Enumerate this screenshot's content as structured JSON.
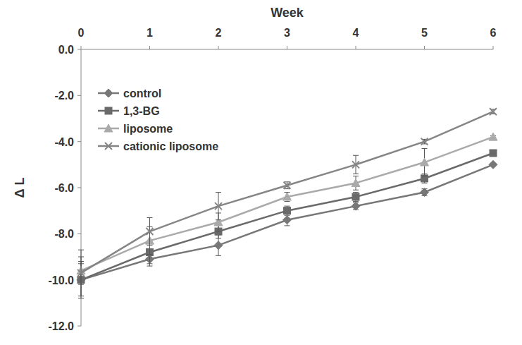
{
  "chart_data": {
    "type": "line",
    "x_label": "Week",
    "y_label": "Δ L",
    "x": [
      0,
      1,
      2,
      3,
      4,
      5,
      6
    ],
    "xlim": [
      0,
      6
    ],
    "xticks": [
      0,
      1,
      2,
      3,
      4,
      5,
      6
    ],
    "ylim": [
      -12,
      0
    ],
    "yticks": [
      {
        "value": 0,
        "label": "0.0"
      },
      {
        "value": -2,
        "label": "-2.0"
      },
      {
        "value": -4,
        "label": "-4.0"
      },
      {
        "value": -6,
        "label": "-6.0"
      },
      {
        "value": -8,
        "label": "-8.0"
      },
      {
        "value": -10,
        "label": "-10.0"
      },
      {
        "value": -12,
        "label": "-12.0"
      }
    ],
    "grid": false,
    "legend": "upper left",
    "series": [
      {
        "name": "control",
        "color": "#777777",
        "marker": "diamond",
        "values": [
          -10.0,
          -9.1,
          -8.5,
          -7.4,
          -6.8,
          -6.2,
          -5.0
        ],
        "errors": [
          0.8,
          0.3,
          0.45,
          0.25,
          0.15,
          0.15,
          0.05
        ]
      },
      {
        "name": "1,3-BG",
        "color": "#6a6a6a",
        "marker": "square",
        "values": [
          -10.0,
          -8.8,
          -7.9,
          -7.0,
          -6.4,
          -5.6,
          -4.5
        ],
        "errors": [
          0.7,
          0.5,
          0.3,
          0.2,
          0.2,
          0.2,
          0.1
        ]
      },
      {
        "name": "liposome",
        "color": "#aaaaaa",
        "marker": "triangle",
        "values": [
          -9.6,
          -8.3,
          -7.5,
          -6.4,
          -5.8,
          -4.9,
          -3.8
        ],
        "errors": [
          0.6,
          0.6,
          0.4,
          0.2,
          0.3,
          0.6,
          0.05
        ]
      },
      {
        "name": "cationic liposome",
        "color": "#858585",
        "marker": "x",
        "values": [
          -9.7,
          -7.9,
          -6.8,
          -5.9,
          -5.0,
          -4.0,
          -2.7
        ],
        "errors": [
          1.0,
          0.6,
          0.6,
          0.15,
          0.4,
          0.1,
          0.1
        ]
      }
    ]
  }
}
